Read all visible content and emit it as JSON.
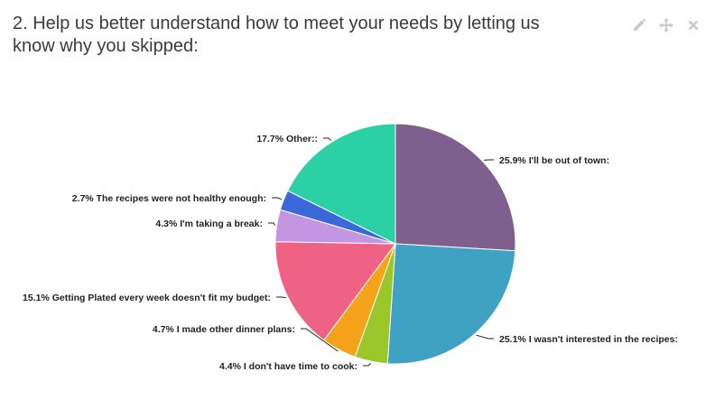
{
  "question": {
    "title": "2. Help us better understand how to meet your needs by letting us know why you skipped:"
  },
  "toolbar": {
    "edit_icon": "pencil-icon",
    "move_icon": "move-arrows-icon",
    "close_icon": "close-icon",
    "icon_color": "#c8c8c8"
  },
  "chart_data": {
    "type": "pie",
    "start_angle_deg": 0,
    "direction": "clockwise",
    "slices": [
      {
        "label": "25.9% I'll be out of town:",
        "value": 25.9,
        "color": "#7e5f8e"
      },
      {
        "label": "25.1% I wasn't interested in the recipes:",
        "value": 25.1,
        "color": "#3fa2c3"
      },
      {
        "label": "4.4% I don't have time to cook:",
        "value": 4.4,
        "color": "#9bc72b"
      },
      {
        "label": "4.7% I made other dinner plans:",
        "value": 4.7,
        "color": "#f5a31a"
      },
      {
        "label": "15.1% Getting Plated every week doesn't fit my budget:",
        "value": 15.1,
        "color": "#ef6284"
      },
      {
        "label": "4.3% I'm taking a break:",
        "value": 4.3,
        "color": "#c495e0"
      },
      {
        "label": "2.7% The recipes were not healthy enough:",
        "value": 2.7,
        "color": "#3b68d8"
      },
      {
        "label": "17.7% Other::",
        "value": 17.7,
        "color": "#2bd0a5"
      }
    ]
  }
}
